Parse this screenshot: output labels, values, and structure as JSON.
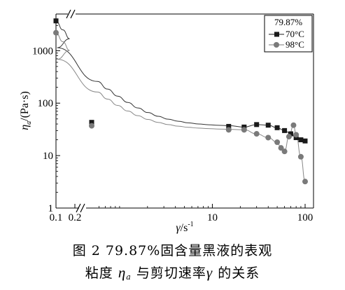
{
  "chart_data": {
    "type": "scatter",
    "x_scale": "log",
    "y_scale": "log",
    "axis_break": true,
    "xlabel": "γ/s⁻¹",
    "xlabel_symbol": "γ",
    "xlabel_unit": "/s",
    "xlabel_exp": "-1",
    "ylabel": "ηa/(Pa·s)",
    "ylabel_symbol": "η",
    "ylabel_sub": "a",
    "ylabel_unit": "/(Pa·s)",
    "x_ticks": [
      "0.1",
      "0.2",
      "10",
      "100"
    ],
    "y_ticks": [
      "1",
      "10",
      "100",
      "1000"
    ],
    "ylim": [
      1,
      5000
    ],
    "legend_title": "79.87%",
    "legend_position": "top-right",
    "series": [
      {
        "name": "70°C",
        "marker": "square",
        "color": "#1a1a1a",
        "x": [
          0.1,
          0.5,
          15,
          22,
          30,
          40,
          50,
          60,
          70,
          80,
          90,
          100
        ],
        "y": [
          3700,
          43,
          36,
          35,
          39,
          38,
          34,
          30,
          26,
          22,
          20,
          19
        ]
      },
      {
        "name": "98°C",
        "marker": "circle",
        "color": "#7a7a7a",
        "x": [
          0.1,
          0.5,
          15,
          22,
          30,
          40,
          50,
          55,
          60,
          67,
          75,
          80,
          90,
          100
        ],
        "y": [
          2200,
          37,
          31,
          31,
          26,
          22,
          18,
          14,
          12,
          23,
          38,
          25,
          9.5,
          3.2
        ]
      }
    ]
  },
  "caption": {
    "line1": "图 2   79.87%固含量黑液的表观",
    "line2_prefix": "粘度 ",
    "line2_symbol": "η",
    "line2_sub": "a",
    "line2_mid": " 与剪切速率",
    "line2_symbol2": "γ",
    "line2_suffix": " 的关系"
  }
}
